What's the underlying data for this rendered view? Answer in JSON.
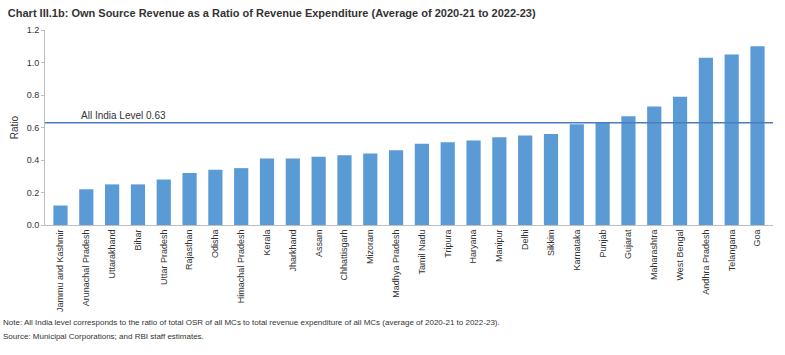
{
  "chart_data": {
    "type": "bar",
    "title": "Chart III.1b: Own Source Revenue as a Ratio of Revenue Expenditure (Average of 2020-21 to 2022-23)",
    "y_label": "Ratio",
    "categories": [
      "Jammu and Kashmir",
      "Arunachal Pradesh",
      "Uttarakhand",
      "Bihar",
      "Uttar Pradesh",
      "Rajasthan",
      "Odisha",
      "Himachal Pradesh",
      "Kerala",
      "Jharkhand",
      "Assam",
      "Chhattisgarh",
      "Mizoram",
      "Madhya Pradesh",
      "Tamil Nadu",
      "Tripura",
      "Haryana",
      "Manipur",
      "Delhi",
      "Sikkim",
      "Karnataka",
      "Punjab",
      "Gujarat",
      "Maharashtra",
      "West Bengal",
      "Andhra Pradesh",
      "Telangana",
      "Goa"
    ],
    "values": [
      0.12,
      0.22,
      0.25,
      0.25,
      0.28,
      0.32,
      0.34,
      0.35,
      0.41,
      0.41,
      0.42,
      0.43,
      0.44,
      0.46,
      0.5,
      0.51,
      0.52,
      0.54,
      0.55,
      0.56,
      0.62,
      0.63,
      0.67,
      0.73,
      0.79,
      1.03,
      1.05,
      1.1
    ],
    "color": "#5b9bd5",
    "ylim": [
      0,
      1.2
    ],
    "yticks": [
      {
        "value": 0,
        "label": "0.0"
      },
      0.2,
      0.4,
      0.6,
      0.8,
      {
        "value": 1,
        "label": "1.0"
      },
      1.2
    ],
    "grid": false,
    "reference_line": {
      "value": 0.63,
      "label": "All India Level 0.63",
      "color": "#4a7ebb"
    },
    "notes": [
      "Note: All India level corresponds to the ratio of total OSR of all MCs to total revenue expenditure of all MCs (average of 2020-21 to 2022-23).",
      "Source: Municipal Corporations; and RBI staff estimates."
    ]
  }
}
